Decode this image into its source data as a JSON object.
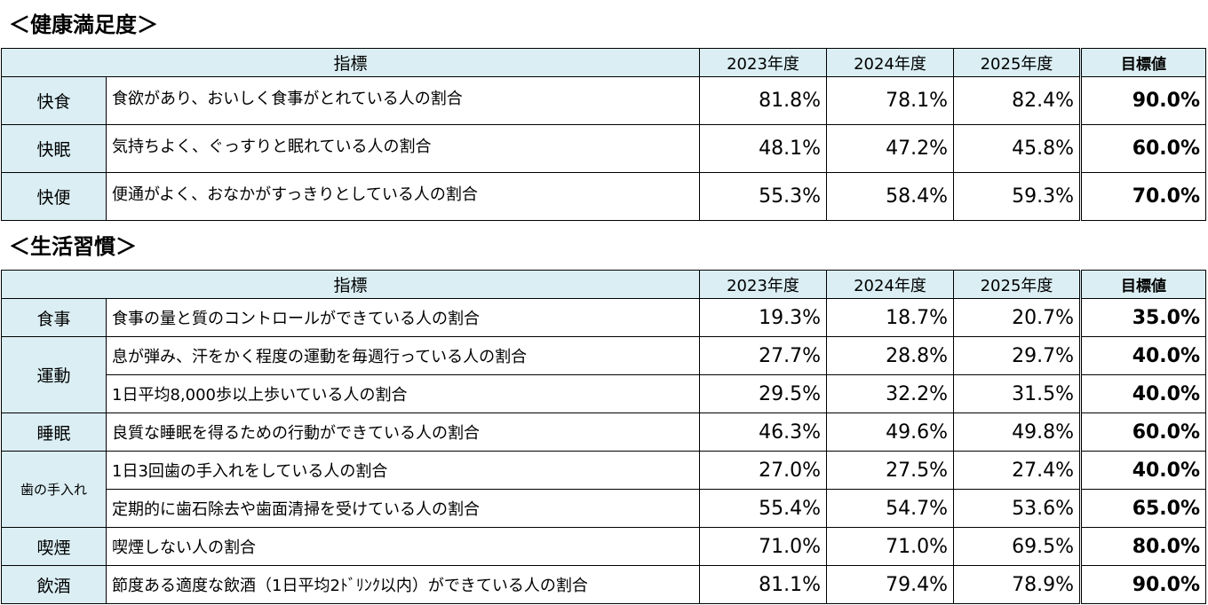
{
  "section1": {
    "title": "＜健康満足度＞",
    "headers": {
      "indicator": "指標",
      "y2023": "2023年度",
      "y2024": "2024年度",
      "y2025": "2025年度",
      "target": "目標値"
    },
    "rows": [
      {
        "category": "快食",
        "desc": "食欲があり、おいしく食事がとれている人の割合",
        "y2023": "81.8%",
        "y2024": "78.1%",
        "y2025": "82.4%",
        "target": "90.0%"
      },
      {
        "category": "快眠",
        "desc": "気持ちよく、ぐっすりと眠れている人の割合",
        "y2023": "48.1%",
        "y2024": "47.2%",
        "y2025": "45.8%",
        "target": "60.0%"
      },
      {
        "category": "快便",
        "desc": "便通がよく、おなかがすっきりとしている人の割合",
        "y2023": "55.3%",
        "y2024": "58.4%",
        "y2025": "59.3%",
        "target": "70.0%"
      }
    ]
  },
  "section2": {
    "title": "＜生活習慣＞",
    "headers": {
      "indicator": "指標",
      "y2023": "2023年度",
      "y2024": "2024年度",
      "y2025": "2025年度",
      "target": "目標値"
    },
    "categories": {
      "meal": "食事",
      "exercise": "運動",
      "sleep": "睡眠",
      "teeth": "歯の手入れ",
      "smoking": "喫煙",
      "drinking": "飲酒"
    },
    "rows": [
      {
        "desc": "食事の量と質のコントロールができている人の割合",
        "y2023": "19.3%",
        "y2024": "18.7%",
        "y2025": "20.7%",
        "target": "35.0%"
      },
      {
        "desc": "息が弾み、汗をかく程度の運動を毎週行っている人の割合",
        "y2023": "27.7%",
        "y2024": "28.8%",
        "y2025": "29.7%",
        "target": "40.0%"
      },
      {
        "desc": "1日平均8,000歩以上歩いている人の割合",
        "y2023": "29.5%",
        "y2024": "32.2%",
        "y2025": "31.5%",
        "target": "40.0%"
      },
      {
        "desc": "良質な睡眠を得るための行動ができている人の割合",
        "y2023": "46.3%",
        "y2024": "49.6%",
        "y2025": "49.8%",
        "target": "60.0%"
      },
      {
        "desc": "1日3回歯の手入れをしている人の割合",
        "y2023": "27.0%",
        "y2024": "27.5%",
        "y2025": "27.4%",
        "target": "40.0%"
      },
      {
        "desc": "定期的に歯石除去や歯面清掃を受けている人の割合",
        "y2023": "55.4%",
        "y2024": "54.7%",
        "y2025": "53.6%",
        "target": "65.0%"
      },
      {
        "desc": "喫煙しない人の割合",
        "y2023": "71.0%",
        "y2024": "71.0%",
        "y2025": "69.5%",
        "target": "80.0%"
      },
      {
        "desc": "節度ある適度な飲酒（1日平均2ﾄﾞﾘﾝｸ以内）ができている人の割合",
        "y2023": "81.1%",
        "y2024": "79.4%",
        "y2025": "78.9%",
        "target": "90.0%"
      }
    ]
  }
}
